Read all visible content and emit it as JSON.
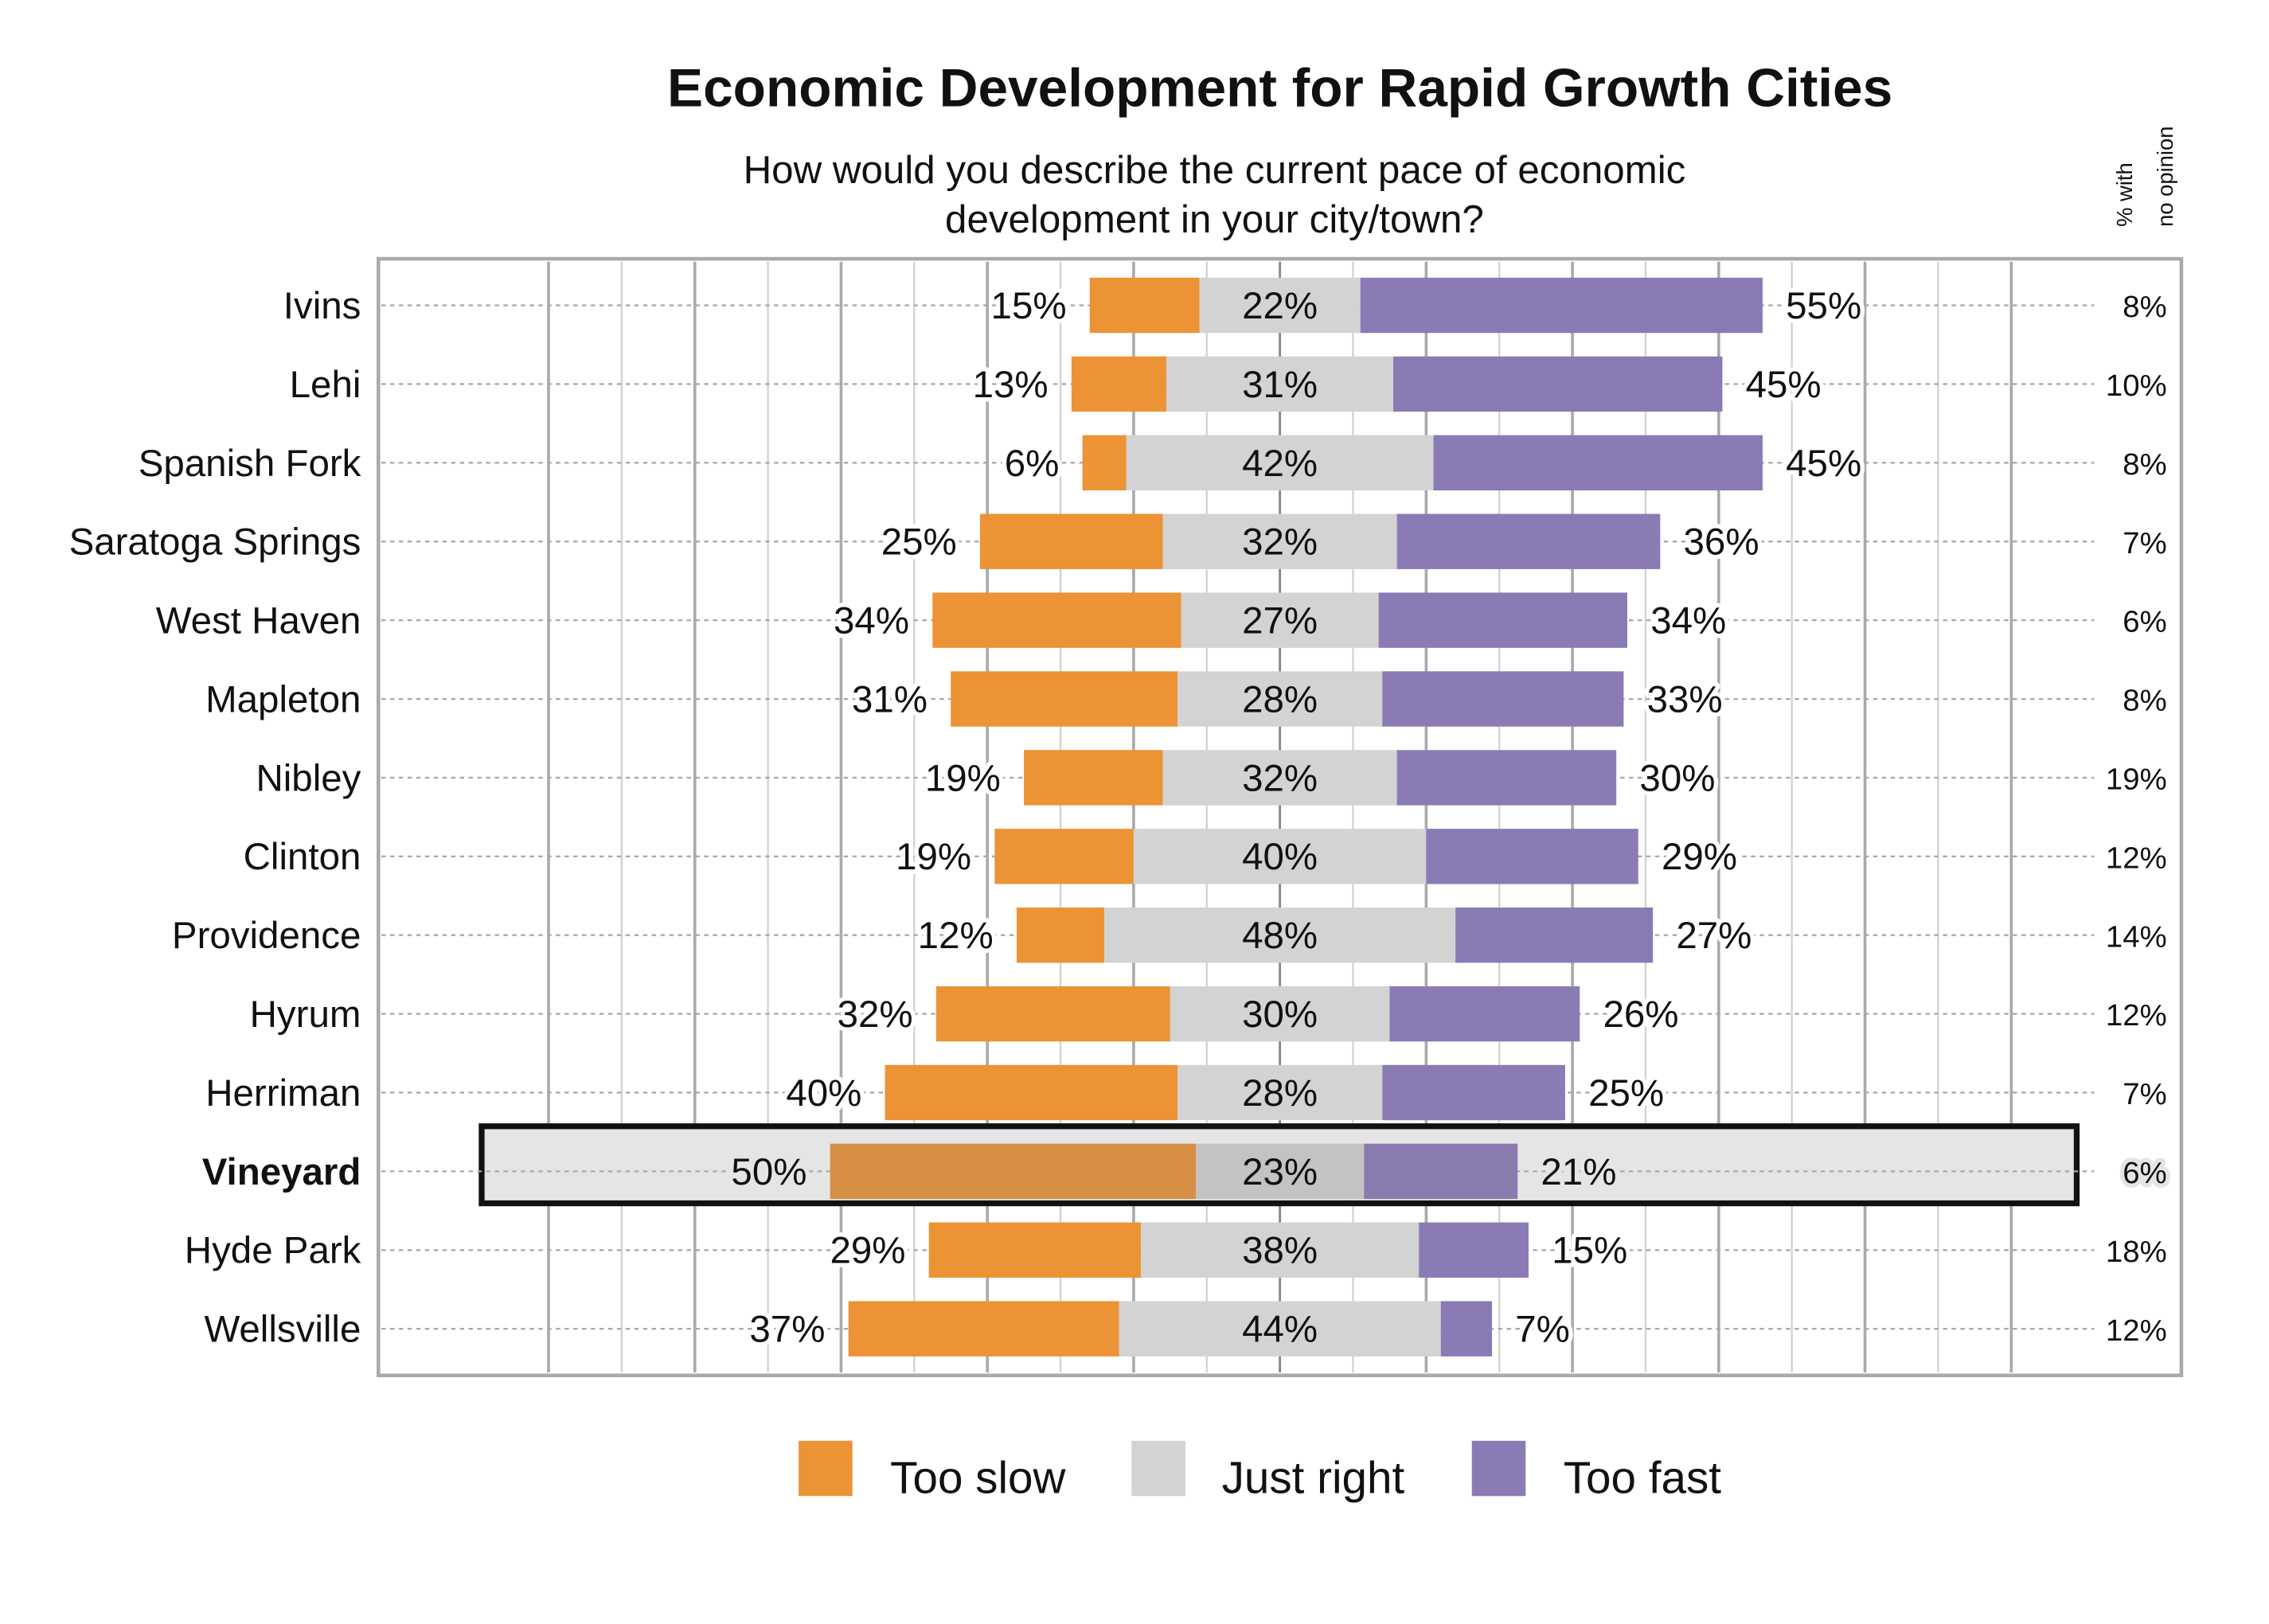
{
  "chart_data": {
    "type": "bar",
    "stacked": true,
    "orientation": "horizontal",
    "diverging": true,
    "title": "Economic Development for Rapid Growth Cities",
    "subtitle": [
      "How would you describe the current pace of economic",
      "development in your city/town?"
    ],
    "side_column_header": [
      "% with",
      "no opinion"
    ],
    "categories": [
      "Ivins",
      "Lehi",
      "Spanish Fork",
      "Saratoga Springs",
      "West Haven",
      "Mapleton",
      "Nibley",
      "Clinton",
      "Providence",
      "Hyrum",
      "Herriman",
      "Vineyard",
      "Hyde Park",
      "Wellsville"
    ],
    "highlighted_category": "Vineyard",
    "series": [
      {
        "name": "Too slow",
        "color": "#ec9335",
        "highlight_color": "#d68f45",
        "values": [
          15,
          13,
          6,
          25,
          34,
          31,
          19,
          19,
          12,
          32,
          40,
          50,
          29,
          37
        ]
      },
      {
        "name": "Just right",
        "color": "#d3d3d3",
        "highlight_color": "#c3c3c3",
        "values": [
          22,
          31,
          42,
          32,
          27,
          28,
          32,
          40,
          48,
          30,
          28,
          23,
          38,
          44
        ]
      },
      {
        "name": "Too fast",
        "color": "#8a7bb5",
        "highlight_color": "#8a7bae",
        "values": [
          55,
          45,
          45,
          36,
          34,
          33,
          30,
          29,
          27,
          26,
          25,
          21,
          15,
          7
        ]
      }
    ],
    "no_opinion": [
      8,
      10,
      8,
      7,
      6,
      8,
      19,
      12,
      14,
      12,
      7,
      6,
      18,
      12
    ],
    "value_suffix": "%",
    "xlim": [
      -123,
      123
    ],
    "grid": true,
    "legend_position": "bottom"
  }
}
